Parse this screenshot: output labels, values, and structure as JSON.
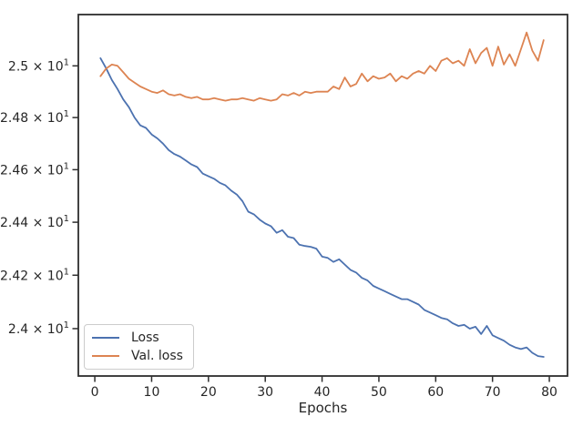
{
  "figure": {
    "background_color": "#ffffff",
    "axis_color": "#2e2e2e",
    "text_color": "#262626"
  },
  "chart_data": {
    "type": "line",
    "title": "",
    "xlabel": "Epochs",
    "ylabel": "",
    "yscale": "log",
    "grid": false,
    "xlim": [
      -2.9,
      83.2
    ],
    "ylim": [
      23.824,
      25.2
    ],
    "xticks": [
      0,
      10,
      20,
      30,
      40,
      50,
      60,
      70,
      80
    ],
    "yticks": [
      {
        "value": 25.0,
        "base": "2.5 × 10",
        "sup": "1"
      },
      {
        "value": 24.8,
        "base": "2.48 × 10",
        "sup": "1"
      },
      {
        "value": 24.6,
        "base": "2.46 × 10",
        "sup": "1"
      },
      {
        "value": 24.4,
        "base": "2.44 × 10",
        "sup": "1"
      },
      {
        "value": 24.2,
        "base": "2.42 × 10",
        "sup": "1"
      },
      {
        "value": 24.0,
        "base": "2.4 × 10",
        "sup": "1"
      }
    ],
    "legend": {
      "location": "lower left"
    },
    "x": [
      1,
      2,
      3,
      4,
      5,
      6,
      7,
      8,
      9,
      10,
      11,
      12,
      13,
      14,
      15,
      16,
      17,
      18,
      19,
      20,
      21,
      22,
      23,
      24,
      25,
      26,
      27,
      28,
      29,
      30,
      31,
      32,
      33,
      34,
      35,
      36,
      37,
      38,
      39,
      40,
      41,
      42,
      43,
      44,
      45,
      46,
      47,
      48,
      49,
      50,
      51,
      52,
      53,
      54,
      55,
      56,
      57,
      58,
      59,
      60,
      61,
      62,
      63,
      64,
      65,
      66,
      67,
      68,
      69,
      70,
      71,
      72,
      73,
      74,
      75,
      76,
      77,
      78,
      79
    ],
    "series": [
      {
        "name": "Loss",
        "color": "#4C72B0",
        "values": [
          25.03,
          24.99,
          24.945,
          24.91,
          24.87,
          24.84,
          24.8,
          24.77,
          24.76,
          24.735,
          24.72,
          24.7,
          24.675,
          24.66,
          24.65,
          24.635,
          24.62,
          24.61,
          24.585,
          24.575,
          24.565,
          24.55,
          24.54,
          24.52,
          24.505,
          24.48,
          24.44,
          24.43,
          24.41,
          24.395,
          24.385,
          24.36,
          24.37,
          24.345,
          24.34,
          24.315,
          24.31,
          24.307,
          24.3,
          24.27,
          24.265,
          24.25,
          24.26,
          24.24,
          24.22,
          24.21,
          24.19,
          24.18,
          24.16,
          24.15,
          24.14,
          24.13,
          24.12,
          24.11,
          24.11,
          24.1,
          24.09,
          24.07,
          24.06,
          24.05,
          24.04,
          24.035,
          24.02,
          24.01,
          24.014,
          24.0,
          24.007,
          23.98,
          24.01,
          23.975,
          23.965,
          23.955,
          23.94,
          23.93,
          23.924,
          23.93,
          23.91,
          23.898,
          23.895
        ]
      },
      {
        "name": "Val. loss",
        "color": "#DD8452",
        "values": [
          24.96,
          24.99,
          25.005,
          25.0,
          24.975,
          24.95,
          24.935,
          24.92,
          24.91,
          24.9,
          24.895,
          24.905,
          24.89,
          24.885,
          24.89,
          24.88,
          24.875,
          24.88,
          24.87,
          24.87,
          24.875,
          24.87,
          24.865,
          24.87,
          24.87,
          24.875,
          24.87,
          24.865,
          24.875,
          24.87,
          24.865,
          24.87,
          24.89,
          24.885,
          24.895,
          24.885,
          24.9,
          24.895,
          24.9,
          24.9,
          24.9,
          24.92,
          24.91,
          24.955,
          24.92,
          24.93,
          24.97,
          24.94,
          24.96,
          24.95,
          24.955,
          24.97,
          24.94,
          24.96,
          24.95,
          24.97,
          24.98,
          24.97,
          25.0,
          24.98,
          25.02,
          25.03,
          25.01,
          25.02,
          25.0,
          25.065,
          25.01,
          25.05,
          25.07,
          25.0,
          25.075,
          25.005,
          25.045,
          25.0,
          25.065,
          25.13,
          25.06,
          25.02,
          25.1
        ]
      }
    ]
  }
}
